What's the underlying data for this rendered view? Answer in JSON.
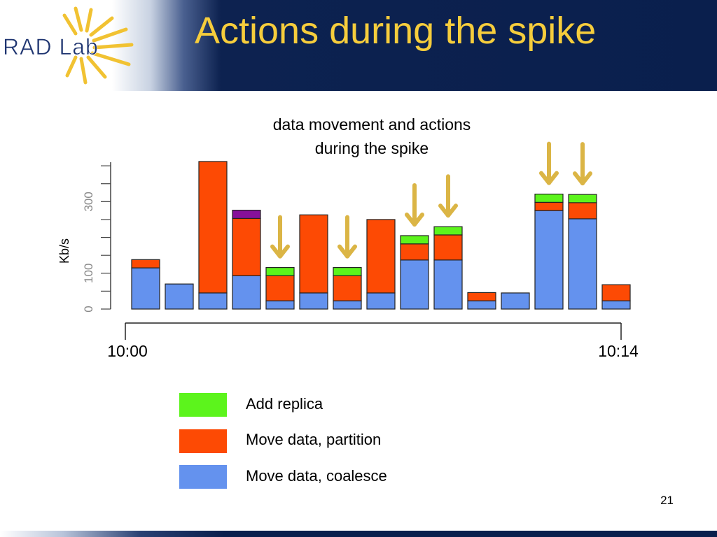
{
  "slide": {
    "logo_text": "RAD Lab",
    "title": "Actions during the spike",
    "page_number": "21"
  },
  "colors": {
    "add_replica": "#5cf41c",
    "move_partition": "#fd4a04",
    "move_coalesce": "#6492ee",
    "unlabeled_action": "#86109a",
    "arrow": "#dbb545",
    "title": "#f6cd3c"
  },
  "legend": [
    {
      "label": "Add replica",
      "color": "#5cf41c"
    },
    {
      "label": "Move data, partition",
      "color": "#fd4a04"
    },
    {
      "label": "Move data, coalesce",
      "color": "#6492ee"
    }
  ],
  "chart_data": {
    "type": "bar",
    "stacked": true,
    "title": "data movement and actions during the spike",
    "title_lines": [
      "data movement and actions",
      "during the spike"
    ],
    "ylabel": "Kb/s",
    "xlabel": "",
    "ylim": [
      0,
      410
    ],
    "yticks": [
      0,
      100,
      300
    ],
    "x_range_labels": [
      "10:00",
      "10:14"
    ],
    "categories": [
      "1",
      "2",
      "3",
      "4",
      "5",
      "6",
      "7",
      "8",
      "9",
      "10",
      "11",
      "12",
      "13",
      "14",
      "15"
    ],
    "series": [
      {
        "name": "Move data, coalesce",
        "color": "#6492ee",
        "values": [
          115,
          70,
          45,
          93,
          23,
          45,
          23,
          45,
          137,
          137,
          23,
          45,
          275,
          252,
          23
        ]
      },
      {
        "name": "Move data, partition",
        "color": "#fd4a04",
        "values": [
          23,
          0,
          367,
          160,
          70,
          218,
          70,
          205,
          45,
          70,
          23,
          0,
          23,
          45,
          45
        ]
      },
      {
        "color": "#86109a",
        "values": [
          0,
          0,
          0,
          23,
          0,
          0,
          0,
          0,
          0,
          0,
          0,
          0,
          0,
          0,
          0
        ]
      },
      {
        "name": "Add replica",
        "color": "#5cf41c",
        "values": [
          0,
          0,
          0,
          0,
          23,
          0,
          23,
          0,
          23,
          23,
          0,
          0,
          23,
          23,
          0
        ]
      }
    ],
    "arrows_over_bars": [
      5,
      7,
      9,
      10,
      13,
      14
    ],
    "grid": false,
    "legend_position": "bottom"
  }
}
